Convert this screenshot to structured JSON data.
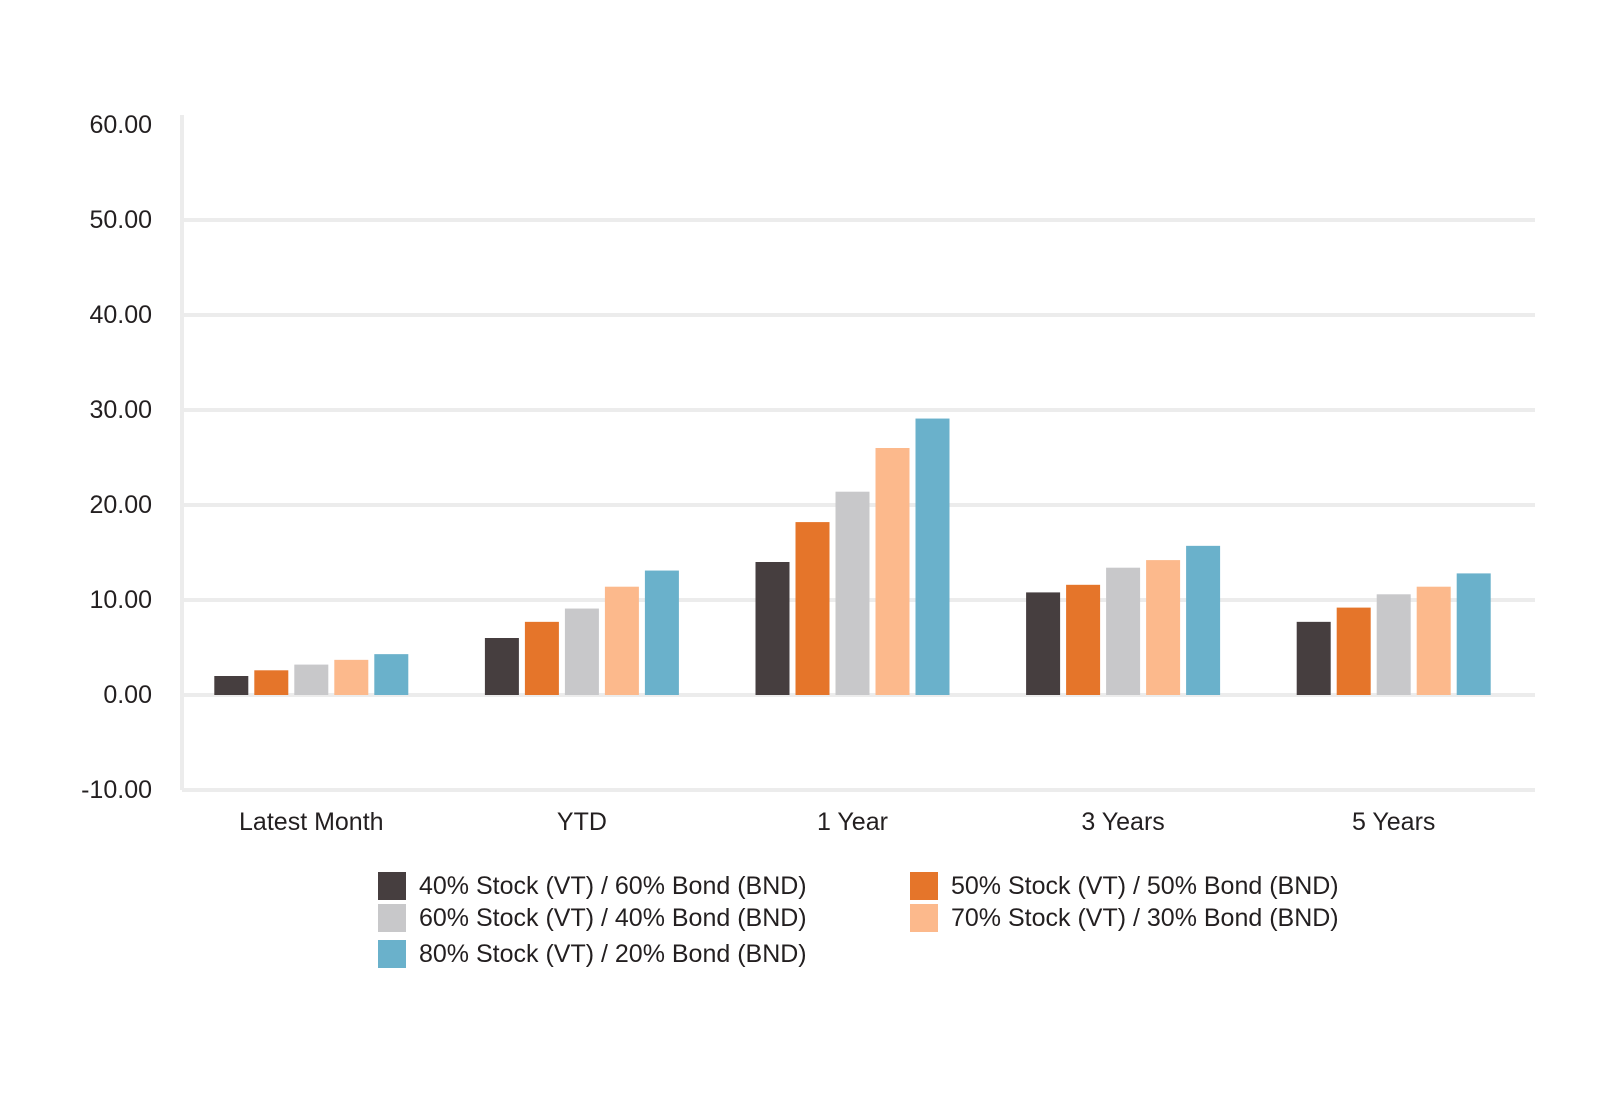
{
  "chart_data": {
    "type": "bar",
    "title": "",
    "xlabel": "",
    "ylabel": "",
    "ylim": [
      -10,
      60
    ],
    "y_ticks": [
      "60.00",
      "50.00",
      "40.00",
      "30.00",
      "20.00",
      "10.00",
      "0.00",
      "-10.00"
    ],
    "y_tick_values": [
      60,
      50,
      40,
      30,
      20,
      10,
      0,
      -10
    ],
    "grid": true,
    "legend_position": "bottom",
    "categories": [
      "Latest Month",
      "YTD",
      "1 Year",
      "3 Years",
      "5 Years"
    ],
    "series": [
      {
        "name": "40% Stock (VT) / 60% Bond (BND)",
        "color": "#463e3f",
        "values": [
          2.0,
          6.0,
          14.0,
          10.8,
          7.7
        ]
      },
      {
        "name": "50% Stock (VT) / 50% Bond (BND)",
        "color": "#e5752a",
        "values": [
          2.6,
          7.7,
          18.2,
          11.6,
          9.2
        ]
      },
      {
        "name": "60% Stock (VT) / 40% Bond (BND)",
        "color": "#c8c8ca",
        "values": [
          3.2,
          9.1,
          21.4,
          13.4,
          10.6
        ]
      },
      {
        "name": "70% Stock (VT) / 30% Bond (BND)",
        "color": "#fcb98c",
        "values": [
          3.7,
          11.4,
          26.0,
          14.2,
          11.4
        ]
      },
      {
        "name": "80% Stock (VT) / 20% Bond (BND)",
        "color": "#6ab1cb",
        "values": [
          4.3,
          13.1,
          29.1,
          15.7,
          12.8
        ]
      }
    ]
  }
}
